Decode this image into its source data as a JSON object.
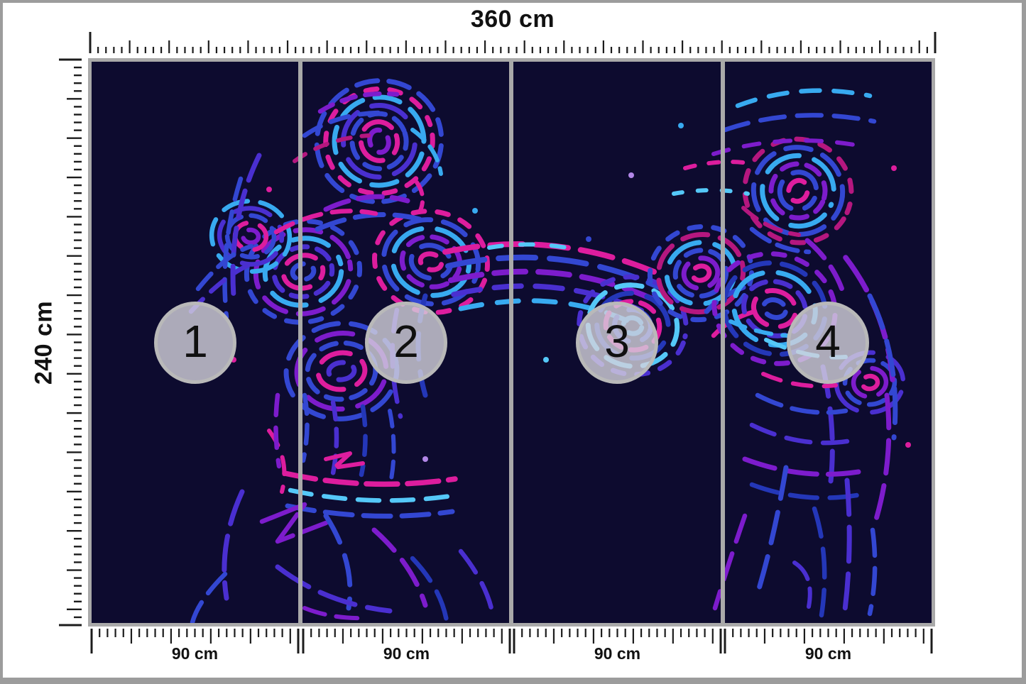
{
  "dimensions": {
    "total_width": "360 cm",
    "total_height": "240 cm",
    "panel_widths": [
      "90 cm",
      "90 cm",
      "90 cm",
      "90 cm"
    ]
  },
  "panels": [
    {
      "number": "1"
    },
    {
      "number": "2"
    },
    {
      "number": "3"
    },
    {
      "number": "4"
    }
  ],
  "colors": {
    "page_background": "#ffffff",
    "outer_border": "#9c9c9c",
    "mural_frame": "#a9a9a9",
    "panel_divider": "#a9a9a9",
    "ruler_ticks": "#1c1c1c",
    "label_text": "#111111",
    "artwork_background": "#0d0b2f",
    "badge_fill": "rgba(212,210,220,0.8)",
    "badge_ring": "#b9b9b9",
    "badge_number": "#101010",
    "artwork_palette": {
      "hot_pink": "#dd1d9e",
      "magenta": "#b5177f",
      "purple": "#7d1ccc",
      "violet": "#4a2fd0",
      "royal_blue": "#3347d2",
      "deep_blue": "#2437b8",
      "sky_blue": "#38aaf0",
      "cyan": "#55c8f8",
      "lavender": "#b287e8"
    }
  }
}
